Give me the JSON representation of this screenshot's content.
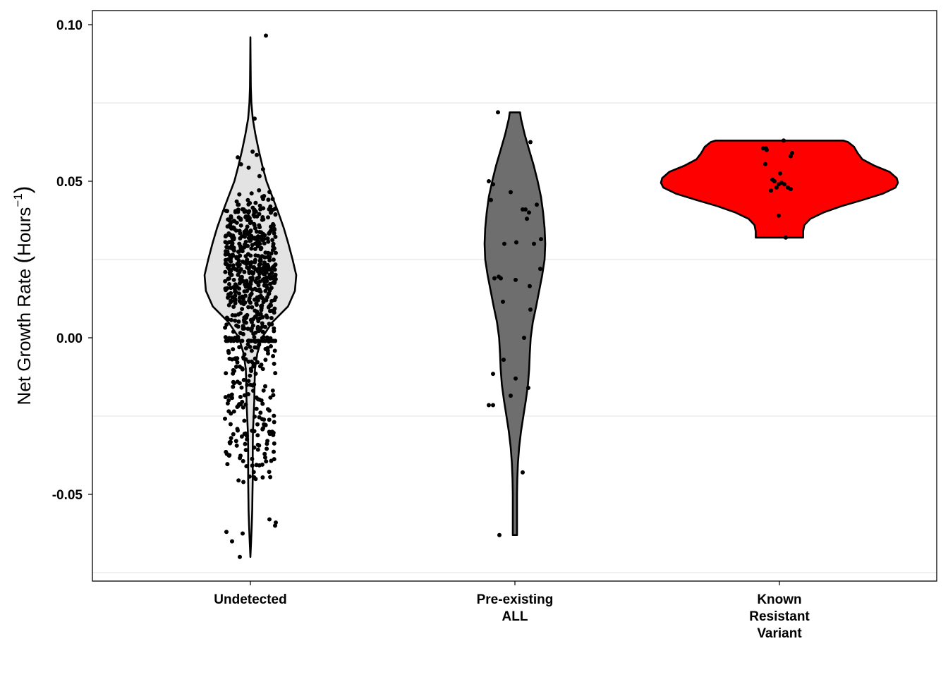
{
  "chart_data": {
    "type": "violin",
    "title": "",
    "xlabel": "",
    "ylabel": {
      "prefix": "Net Growth Rate ",
      "open": "(",
      "unit": "Hours",
      "exponent": "−1",
      "close": ")"
    },
    "ylim": [
      -0.078,
      0.1045
    ],
    "yticks": [
      "-0.05",
      "0.00",
      "0.05",
      "0.10"
    ],
    "grid": "horizontal minor gridlines only",
    "legend": "none",
    "categories": [
      {
        "label_lines": [
          "Undetected"
        ]
      },
      {
        "label_lines": [
          "Pre-existing",
          "ALL"
        ]
      },
      {
        "label_lines": [
          "Known",
          "Resistant",
          "Variant"
        ]
      }
    ],
    "violins": [
      {
        "category": "Undetected",
        "fill": "#e3e3e3",
        "ymin": -0.07,
        "ymax": 0.096,
        "density": [
          [
            0.096,
            0.0
          ],
          [
            0.09,
            0.003
          ],
          [
            0.08,
            0.01
          ],
          [
            0.075,
            0.022
          ],
          [
            0.07,
            0.05
          ],
          [
            0.065,
            0.11
          ],
          [
            0.06,
            0.18
          ],
          [
            0.055,
            0.26
          ],
          [
            0.05,
            0.35
          ],
          [
            0.045,
            0.48
          ],
          [
            0.04,
            0.61
          ],
          [
            0.035,
            0.73
          ],
          [
            0.03,
            0.83
          ],
          [
            0.025,
            0.92
          ],
          [
            0.02,
            1.0
          ],
          [
            0.015,
            0.97
          ],
          [
            0.01,
            0.82
          ],
          [
            0.005,
            0.48
          ],
          [
            0.0,
            0.25
          ],
          [
            -0.005,
            0.15
          ],
          [
            -0.01,
            0.1
          ],
          [
            -0.015,
            0.09
          ],
          [
            -0.02,
            0.085
          ],
          [
            -0.025,
            0.07
          ],
          [
            -0.03,
            0.055
          ],
          [
            -0.035,
            0.05
          ],
          [
            -0.04,
            0.05
          ],
          [
            -0.045,
            0.05
          ],
          [
            -0.05,
            0.045
          ],
          [
            -0.055,
            0.04
          ],
          [
            -0.06,
            0.03
          ],
          [
            -0.065,
            0.015
          ],
          [
            -0.07,
            0.0
          ]
        ],
        "points": "about 750 jittered observations spanning -0.070 to 0.096, densest between 0.00 and 0.05"
      },
      {
        "category": "Pre-existing ALL",
        "fill": "#6e6e6e",
        "ymin": -0.063,
        "ymax": 0.072,
        "density": [
          [
            0.072,
            0.17
          ],
          [
            0.07,
            0.2
          ],
          [
            0.065,
            0.32
          ],
          [
            0.06,
            0.47
          ],
          [
            0.055,
            0.62
          ],
          [
            0.05,
            0.75
          ],
          [
            0.045,
            0.86
          ],
          [
            0.04,
            0.93
          ],
          [
            0.035,
            0.98
          ],
          [
            0.03,
            1.0
          ],
          [
            0.025,
            0.98
          ],
          [
            0.02,
            0.9
          ],
          [
            0.015,
            0.8
          ],
          [
            0.01,
            0.7
          ],
          [
            0.005,
            0.59
          ],
          [
            0.0,
            0.52
          ],
          [
            -0.005,
            0.49
          ],
          [
            -0.01,
            0.47
          ],
          [
            -0.015,
            0.43
          ],
          [
            -0.02,
            0.36
          ],
          [
            -0.025,
            0.28
          ],
          [
            -0.03,
            0.2
          ],
          [
            -0.035,
            0.14
          ],
          [
            -0.04,
            0.1
          ],
          [
            -0.045,
            0.08
          ],
          [
            -0.05,
            0.07
          ],
          [
            -0.055,
            0.07
          ],
          [
            -0.06,
            0.07
          ],
          [
            -0.063,
            0.07
          ]
        ],
        "points": [
          [
            0.072,
            -0.24
          ],
          [
            0.0625,
            0.22
          ],
          [
            0.05,
            -0.37
          ],
          [
            0.049,
            -0.31
          ],
          [
            0.0465,
            -0.06
          ],
          [
            0.044,
            -0.34
          ],
          [
            0.041,
            0.11
          ],
          [
            0.041,
            0.15
          ],
          [
            0.04,
            0.2
          ],
          [
            0.0425,
            0.31
          ],
          [
            0.038,
            0.17
          ],
          [
            0.0315,
            0.37
          ],
          [
            0.03,
            0.27
          ],
          [
            0.0305,
            0.02
          ],
          [
            0.03,
            -0.15
          ],
          [
            0.022,
            0.36
          ],
          [
            0.0195,
            -0.23
          ],
          [
            0.019,
            -0.29
          ],
          [
            0.019,
            -0.2
          ],
          [
            0.0185,
            0.01
          ],
          [
            0.0165,
            0.21
          ],
          [
            0.0115,
            -0.17
          ],
          [
            0.009,
            0.22
          ],
          [
            0.0,
            0.13
          ],
          [
            -0.007,
            -0.16
          ],
          [
            -0.0115,
            -0.31
          ],
          [
            -0.013,
            0.01
          ],
          [
            -0.016,
            0.19
          ],
          [
            -0.0185,
            -0.06
          ],
          [
            -0.0215,
            -0.37
          ],
          [
            -0.0215,
            -0.31
          ],
          [
            -0.043,
            0.11
          ],
          [
            -0.063,
            -0.22
          ]
        ]
      },
      {
        "category": "Known Resistant Variant",
        "fill": "#ff0000",
        "ymin": 0.032,
        "ymax": 0.063,
        "density": [
          [
            0.063,
            0.54
          ],
          [
            0.0625,
            0.58
          ],
          [
            0.061,
            0.63
          ],
          [
            0.059,
            0.66
          ],
          [
            0.057,
            0.7
          ],
          [
            0.055,
            0.8
          ],
          [
            0.053,
            0.93
          ],
          [
            0.051,
            0.99
          ],
          [
            0.0495,
            1.0
          ],
          [
            0.048,
            0.98
          ],
          [
            0.046,
            0.87
          ],
          [
            0.044,
            0.7
          ],
          [
            0.042,
            0.52
          ],
          [
            0.04,
            0.37
          ],
          [
            0.038,
            0.26
          ],
          [
            0.036,
            0.21
          ],
          [
            0.034,
            0.2
          ],
          [
            0.032,
            0.2
          ]
        ],
        "points": [
          [
            0.063,
            0.06
          ],
          [
            0.0605,
            -0.23
          ],
          [
            0.06,
            -0.18
          ],
          [
            0.0605,
            -0.19
          ],
          [
            0.059,
            0.18
          ],
          [
            0.058,
            0.16
          ],
          [
            0.0555,
            -0.2
          ],
          [
            0.0525,
            0.01
          ],
          [
            0.0505,
            -0.1
          ],
          [
            0.05,
            -0.07
          ],
          [
            0.0495,
            0.03
          ],
          [
            0.049,
            -0.01
          ],
          [
            0.049,
            0.07
          ],
          [
            0.048,
            -0.04
          ],
          [
            0.048,
            0.12
          ],
          [
            0.047,
            -0.12
          ],
          [
            0.0475,
            0.16
          ],
          [
            0.039,
            -0.01
          ],
          [
            0.032,
            0.09
          ]
        ]
      }
    ]
  }
}
